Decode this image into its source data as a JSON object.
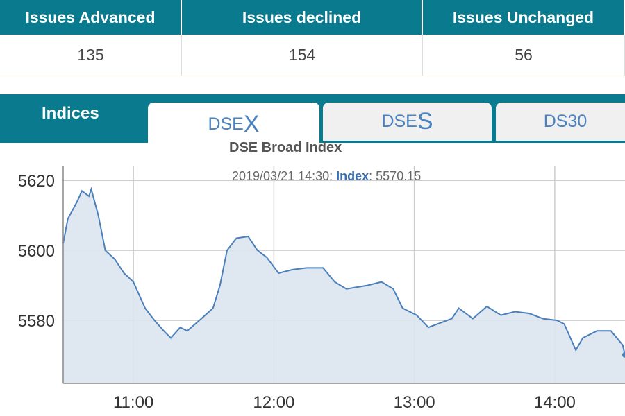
{
  "stats": {
    "headers": [
      "Issues Advanced",
      "Issues declined",
      "Issues Unchanged"
    ],
    "values": [
      "135",
      "154",
      "56"
    ]
  },
  "tabs": {
    "section_label": "Indices",
    "items": [
      {
        "prefix": "DSE",
        "suffix": "X",
        "active": true
      },
      {
        "prefix": "DSE",
        "suffix": "S",
        "active": false
      },
      {
        "prefix": "DS30",
        "suffix": "",
        "active": false
      }
    ]
  },
  "colors": {
    "teal": "#0a7a8e",
    "line": "#4a7fba",
    "fill": "#dce4ee"
  },
  "chart_data": {
    "type": "area",
    "title": "DSE Broad Index",
    "tooltip": {
      "datetime": "2019/03/21 14:30",
      "series": "Index",
      "value": "5570.15"
    },
    "xlim": [
      "10:30",
      "14:30"
    ],
    "ylim": [
      5562,
      5624
    ],
    "xticks": [
      "11:00",
      "12:00",
      "13:00",
      "14:00"
    ],
    "yticks": [
      5580,
      5600,
      5620
    ],
    "grid": true,
    "x": [
      "10:30",
      "10:32",
      "10:36",
      "10:38",
      "10:41",
      "10:42",
      "10:45",
      "10:48",
      "10:52",
      "10:56",
      "11:00",
      "11:05",
      "11:09",
      "11:13",
      "11:16",
      "11:20",
      "11:23",
      "11:29",
      "11:34",
      "11:37",
      "11:40",
      "11:44",
      "11:49",
      "11:53",
      "11:57",
      "12:02",
      "12:08",
      "12:14",
      "12:21",
      "12:26",
      "12:31",
      "12:40",
      "12:46",
      "12:51",
      "12:55",
      "13:01",
      "13:06",
      "13:10",
      "13:16",
      "13:19",
      "13:25",
      "13:31",
      "13:37",
      "13:43",
      "13:49",
      "13:55",
      "14:01",
      "14:04",
      "14:07",
      "14:09",
      "14:12",
      "14:18",
      "14:24",
      "14:29",
      "14:30"
    ],
    "y": [
      5602,
      5609,
      5614,
      5617,
      5615.5,
      5617.5,
      5610,
      5600,
      5597.5,
      5593.5,
      5591,
      5583.5,
      5580,
      5577,
      5575,
      5578,
      5577,
      5580.5,
      5583.5,
      5590,
      5600,
      5603.5,
      5604,
      5600,
      5598,
      5593.5,
      5594.5,
      5595,
      5595,
      5591,
      5589,
      5590,
      5591,
      5589,
      5583.5,
      5581.5,
      5578,
      5579,
      5580.5,
      5583.5,
      5580.5,
      5584,
      5581.5,
      5582.5,
      5582,
      5580.5,
      5580,
      5579,
      5574.5,
      5571.5,
      5575,
      5577,
      5577,
      5573,
      5570.15
    ]
  }
}
